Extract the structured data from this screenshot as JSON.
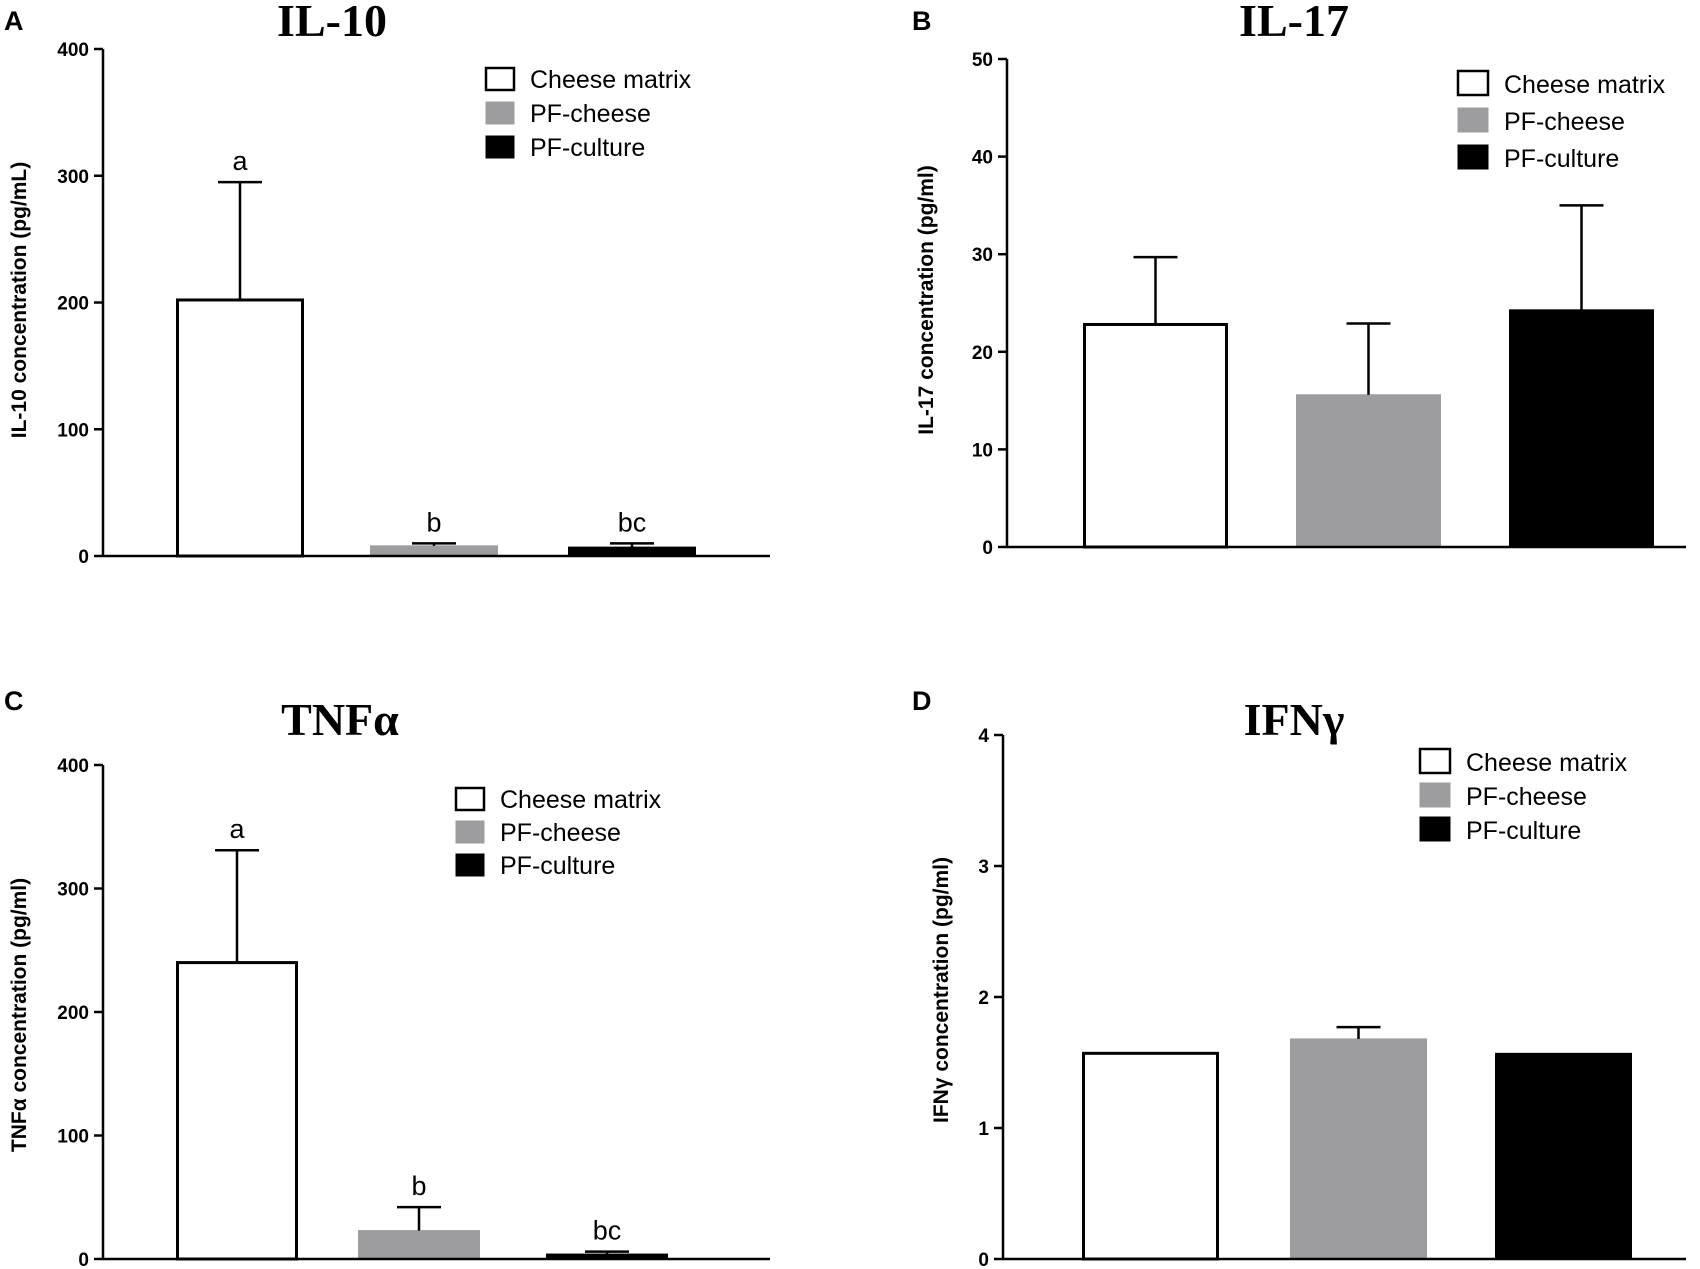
{
  "figure": {
    "panels": [
      "A",
      "B",
      "C",
      "D"
    ],
    "legend": [
      {
        "label": "Cheese matrix",
        "fill": "#ffffff",
        "stroke": "#000000"
      },
      {
        "label": "PF-cheese",
        "fill": "#9d9d9f",
        "stroke": "#9d9d9f"
      },
      {
        "label": "PF-culture",
        "fill": "#000000",
        "stroke": "#000000"
      }
    ]
  },
  "chart_data": [
    {
      "panel": "A",
      "type": "bar",
      "title": "IL-10",
      "ylabel": "IL-10 concentration (pg/mL)",
      "xlabel": "",
      "ylim": [
        0,
        400
      ],
      "yticks": [
        0,
        100,
        200,
        300,
        400
      ],
      "categories": [
        "Cheese matrix",
        "PF-cheese",
        "PF-culture"
      ],
      "values": [
        202,
        8,
        7
      ],
      "errors": [
        93,
        2,
        3
      ],
      "labels": [
        "a",
        "b",
        "bc"
      ],
      "legend_position": "top-right"
    },
    {
      "panel": "B",
      "type": "bar",
      "title": "IL-17",
      "ylabel": "IL-17 concentration (pg/ml)",
      "xlabel": "",
      "ylim": [
        0,
        50
      ],
      "yticks": [
        0,
        10,
        20,
        30,
        40,
        50
      ],
      "categories": [
        "Cheese matrix",
        "PF-cheese",
        "PF-culture"
      ],
      "values": [
        22.8,
        15.6,
        24.3
      ],
      "errors": [
        6.9,
        7.3,
        10.7
      ],
      "labels": [
        "",
        "",
        ""
      ],
      "legend_position": "top-right"
    },
    {
      "panel": "C",
      "type": "bar",
      "title": "TNFα",
      "ylabel": "TNFα concentration (pg/ml)",
      "xlabel": "",
      "ylim": [
        0,
        400
      ],
      "yticks": [
        0,
        100,
        200,
        300,
        400
      ],
      "categories": [
        "Cheese matrix",
        "PF-cheese",
        "PF-culture"
      ],
      "values": [
        240,
        23,
        4
      ],
      "errors": [
        91,
        19,
        2
      ],
      "labels": [
        "a",
        "b",
        "bc"
      ],
      "legend_position": "top-right"
    },
    {
      "panel": "D",
      "type": "bar",
      "title": "IFNγ",
      "ylabel": "IFNγ concentration (pg/ml)",
      "xlabel": "",
      "ylim": [
        0,
        4
      ],
      "yticks": [
        0,
        1,
        2,
        3,
        4
      ],
      "categories": [
        "Cheese matrix",
        "PF-cheese",
        "PF-culture"
      ],
      "values": [
        1.57,
        1.68,
        1.57
      ],
      "errors": [
        0,
        0.09,
        0
      ],
      "labels": [
        "",
        "",
        ""
      ],
      "legend_position": "top-right"
    }
  ]
}
